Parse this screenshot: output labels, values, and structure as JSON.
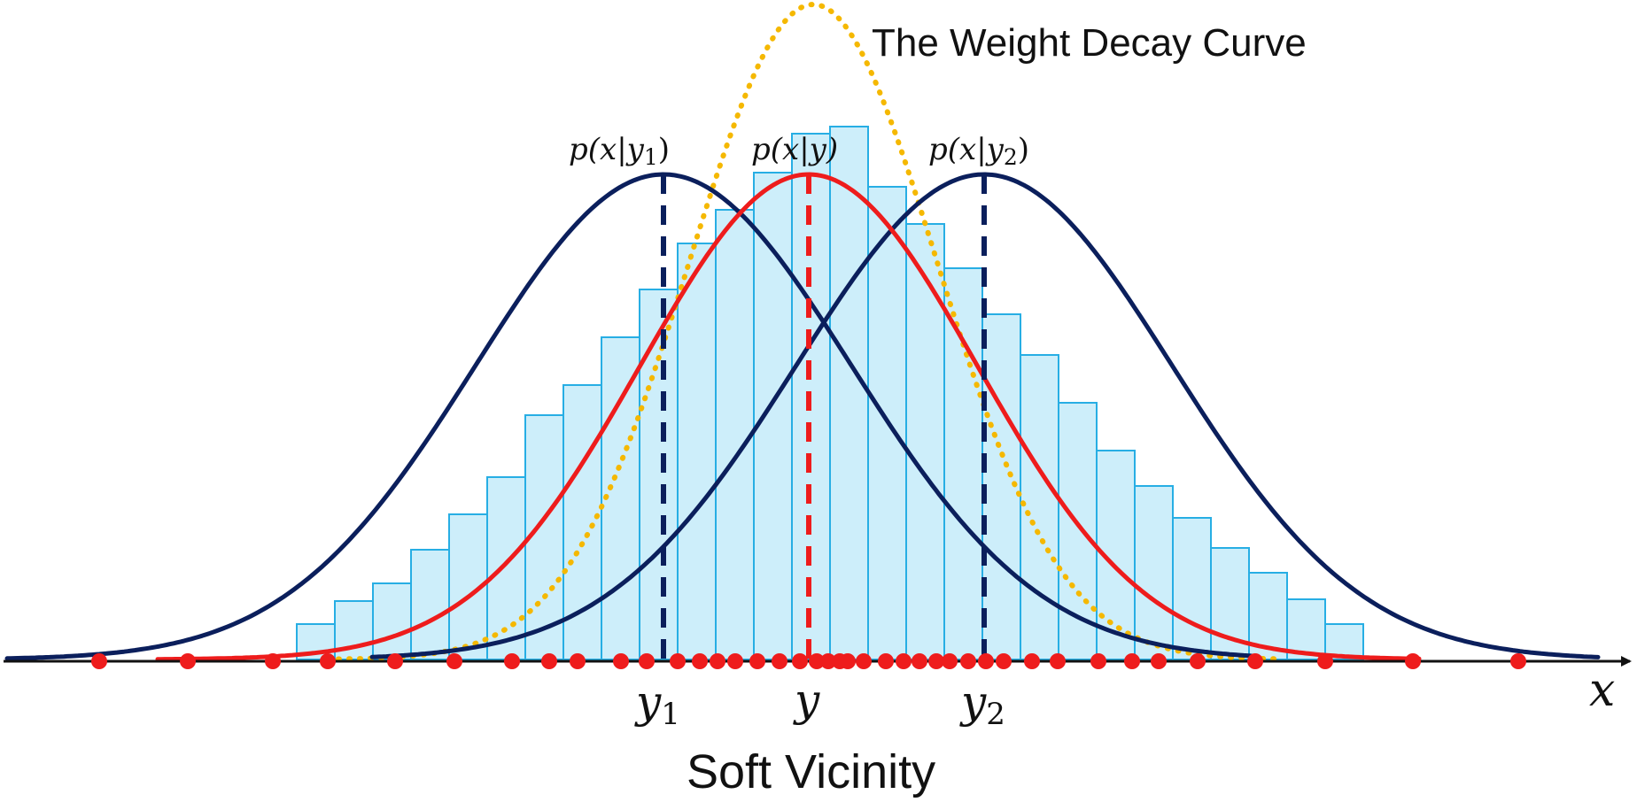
{
  "title": "The Weight Decay Curve",
  "caption": "Soft Vicinity",
  "axis": {
    "x_label": "x",
    "markers": {
      "y1": {
        "base": "y",
        "sub": "1"
      },
      "y": {
        "base": "y",
        "sub": ""
      },
      "y2": {
        "base": "y",
        "sub": "2"
      }
    }
  },
  "curve_labels": {
    "p_y1": {
      "main": "p(x|y",
      "sub": "1",
      "close": ")"
    },
    "p_y": {
      "main": "p(x|y)",
      "sub": "",
      "close": ""
    },
    "p_y2": {
      "main": "p(x|y",
      "sub": "2",
      "close": ")"
    }
  },
  "chart_data": {
    "type": "histogram-with-density-curves",
    "x_range": [
      0,
      1848
    ],
    "histogram": {
      "bin_edges": [
        335,
        378,
        421,
        464,
        507,
        550,
        593,
        636,
        679,
        722,
        765,
        808,
        851,
        894,
        937,
        980,
        1023,
        1066,
        1109,
        1152,
        1195,
        1238,
        1281,
        1324,
        1367,
        1410,
        1453,
        1496,
        1539
      ],
      "heights": [
        40,
        66,
        86,
        124,
        164,
        206,
        276,
        310,
        364,
        418,
        470,
        508,
        550,
        594,
        602,
        534,
        492,
        442,
        390,
        344,
        290,
        236,
        196,
        160,
        126,
        98,
        68,
        40
      ]
    },
    "dots": [
      112,
      212,
      308,
      370,
      446,
      513,
      578,
      620,
      652,
      701,
      730,
      765,
      790,
      810,
      830,
      855,
      880,
      903,
      922,
      935,
      948,
      957,
      975,
      1000,
      1020,
      1038,
      1057,
      1072,
      1093,
      1113,
      1133,
      1165,
      1194,
      1240,
      1278,
      1308,
      1352,
      1417,
      1496,
      1595,
      1714
    ],
    "curves": [
      {
        "name": "p(x|y1)",
        "center": 749,
        "peak": 548,
        "color": "#0b1f5c",
        "style": "solid"
      },
      {
        "name": "p(x|y2)",
        "center": 1111,
        "peak": 548,
        "color": "#0b1f5c",
        "style": "solid"
      },
      {
        "name": "p(x|y)",
        "center": 913,
        "peak": 548,
        "color": "#ee1c1c",
        "style": "solid"
      },
      {
        "name": "The Weight Decay Curve",
        "center": 918,
        "peak": 740,
        "color": "#f5b800",
        "style": "dotted"
      }
    ],
    "mode_lines": [
      {
        "name": "y1",
        "at": 749,
        "color": "#0b1f5c"
      },
      {
        "name": "y",
        "at": 913,
        "color": "#ee1c1c"
      },
      {
        "name": "y2",
        "at": 1111,
        "color": "#0b1f5c"
      }
    ]
  },
  "colors": {
    "bar_fill": "#cdeefa",
    "bar_stroke": "#27aee4",
    "navy": "#0b1f5c",
    "red": "#ee1c1c",
    "gold": "#f5b800",
    "axis": "#111111"
  }
}
